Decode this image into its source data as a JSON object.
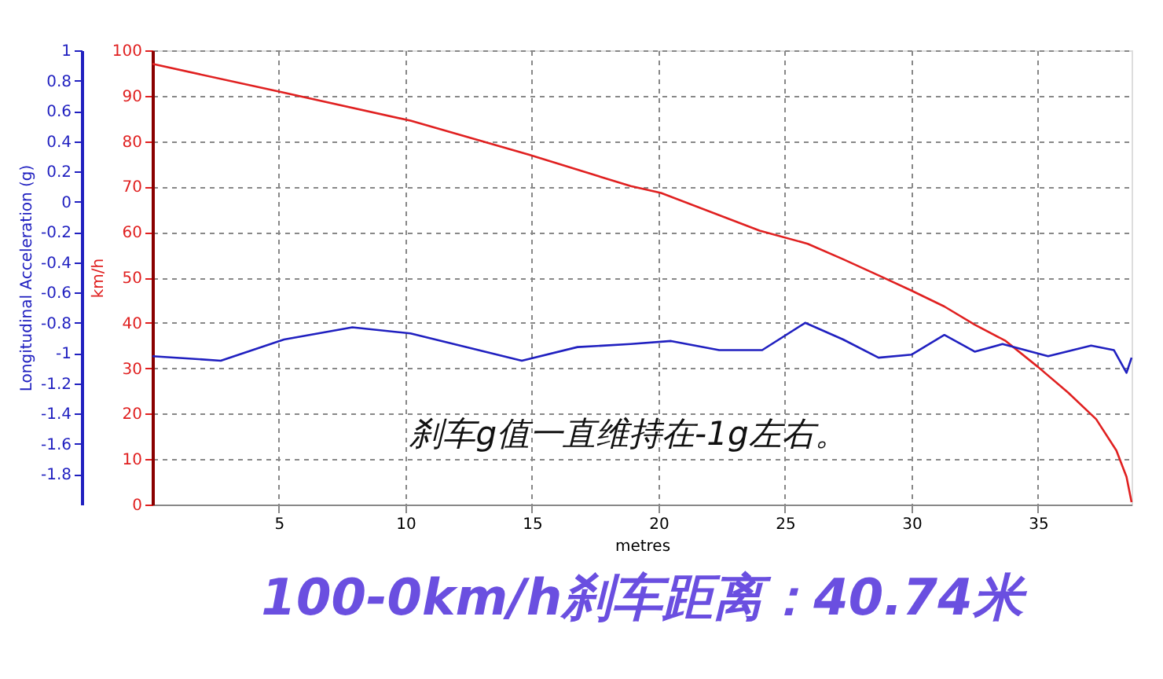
{
  "chart_data": {
    "type": "line",
    "title": "100-0km/h刹车距离：40.74米",
    "xlabel": "metres",
    "ylabel": "km/h",
    "y2label": "Longitudinal Acceleration (g)",
    "annotations": [
      "刹车g值一直维持在-1g左右。"
    ],
    "xlim": [
      0,
      38.7
    ],
    "xticks": [
      5,
      10,
      15,
      20,
      25,
      30,
      35
    ],
    "ylim": [
      0,
      100
    ],
    "yticks": [
      0,
      10,
      20,
      30,
      40,
      50,
      60,
      70,
      80,
      90,
      100
    ],
    "y2lim": [
      -2,
      1
    ],
    "y2ticks": [
      1,
      0.8,
      0.6,
      0.4,
      0.2,
      0,
      -0.2,
      -0.4,
      -0.6,
      -0.8,
      -1,
      -1.2,
      -1.4,
      -1.6,
      -1.8
    ],
    "grid": true,
    "line_style": "solid",
    "series": [
      {
        "color": "#e02020",
        "x": [
          0,
          5,
          10.2,
          14.9,
          18.9,
          20.1,
          24,
          25.9,
          27.3,
          28.8,
          30,
          31.3,
          32.5,
          33.7,
          35,
          36.2,
          37.3,
          38.1,
          38.5,
          38.7
        ],
        "values": [
          97,
          90.9,
          84.5,
          77,
          70.1,
          68.6,
          60.3,
          57.4,
          54,
          50.2,
          47.1,
          43.6,
          39.6,
          36.1,
          30.3,
          24.6,
          18.8,
          11.9,
          6.1,
          0.5
        ]
      },
      {
        "color": "#2020c0",
        "axis": "y2",
        "x": [
          0,
          2.7,
          5.2,
          7.9,
          10.2,
          14.6,
          16.8,
          18.9,
          20.5,
          22.4,
          24.1,
          25.8,
          27.3,
          28.7,
          30,
          31.3,
          32.5,
          33.6,
          35.4,
          37.1,
          38,
          38.5,
          38.7
        ],
        "values": [
          -1.02,
          -1.05,
          -0.91,
          -0.83,
          -0.87,
          -1.05,
          -0.96,
          -0.94,
          -0.92,
          -0.98,
          -0.98,
          -0.8,
          -0.91,
          -1.03,
          -1.01,
          -0.88,
          -0.99,
          -0.94,
          -1.02,
          -0.95,
          -0.98,
          -1.13,
          -1.03
        ]
      }
    ]
  }
}
